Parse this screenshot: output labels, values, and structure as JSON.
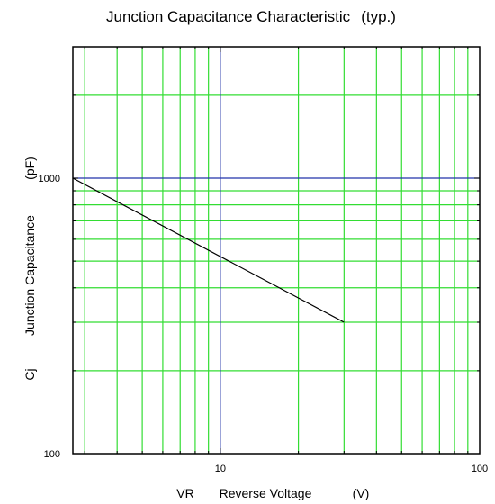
{
  "chart_data": {
    "type": "line",
    "title": "Junction Capacitance Characteristic",
    "subtitle": "(typ.)",
    "xlabel": {
      "symbol": "VR",
      "text": "Reverse Voltage",
      "unit": "(V)"
    },
    "ylabel": {
      "symbol": "Cj",
      "text": "Junction Capacitance",
      "unit": "(pF)"
    },
    "xscale": "log",
    "yscale": "log",
    "xlim": [
      2.7,
      100
    ],
    "ylim": [
      100,
      3000
    ],
    "x_ticks": [
      {
        "value": 10,
        "label": "10"
      },
      {
        "value": 100,
        "label": "100"
      }
    ],
    "y_ticks": [
      {
        "value": 100,
        "label": "100"
      },
      {
        "value": 1000,
        "label": "1000"
      }
    ],
    "grid": true,
    "grid_color": "#33dd33",
    "major_grid_color": "#2233aa",
    "line_color": "#000000",
    "series": [
      {
        "x": [
          2.7,
          30
        ],
        "y": [
          1000,
          300
        ]
      }
    ]
  }
}
